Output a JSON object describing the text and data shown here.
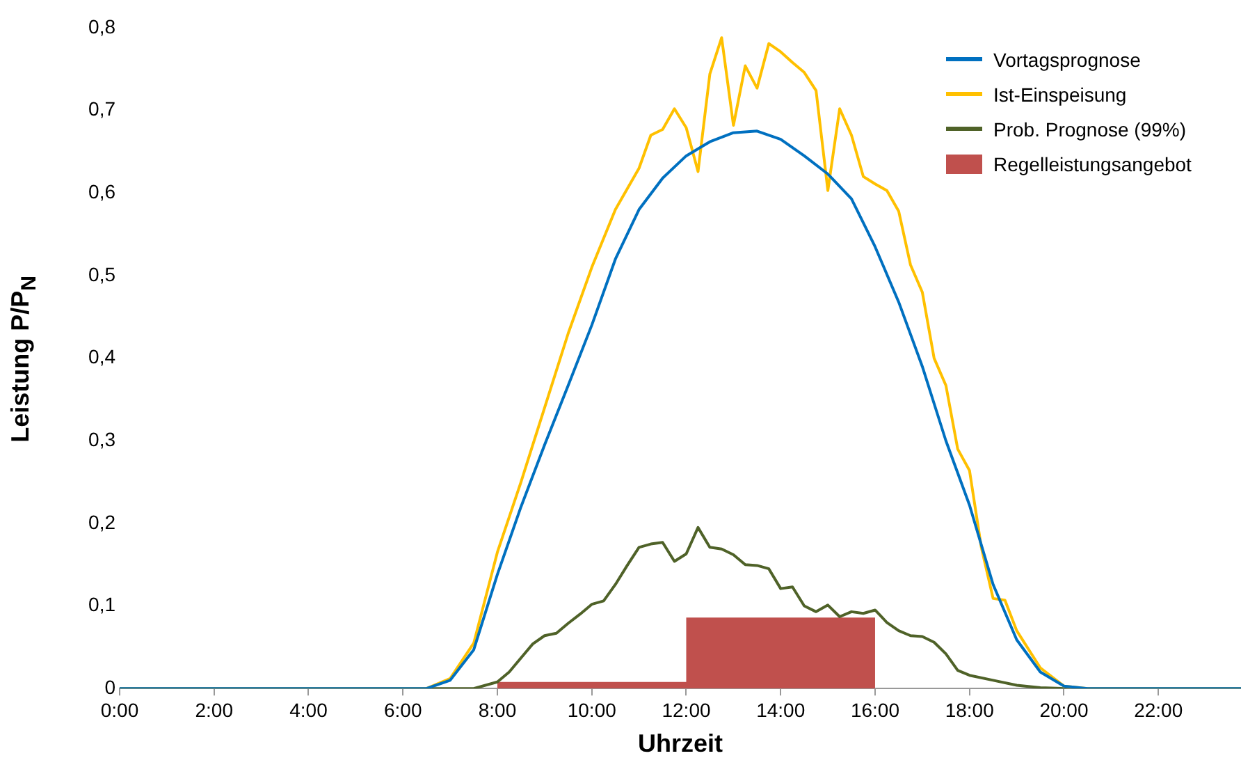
{
  "chart_data": {
    "type": "line",
    "xlabel": "Uhrzeit",
    "ylabel": "Leistung P/P$_{N}$",
    "xlim": [
      0,
      23.75
    ],
    "ylim": [
      0,
      0.8
    ],
    "xticks": [
      {
        "value": 0,
        "label": "0:00"
      },
      {
        "value": 2,
        "label": "2:00"
      },
      {
        "value": 4,
        "label": "4:00"
      },
      {
        "value": 6,
        "label": "6:00"
      },
      {
        "value": 8,
        "label": "8:00"
      },
      {
        "value": 10,
        "label": "10:00"
      },
      {
        "value": 12,
        "label": "12:00"
      },
      {
        "value": 14,
        "label": "14:00"
      },
      {
        "value": 16,
        "label": "16:00"
      },
      {
        "value": 18,
        "label": "18:00"
      },
      {
        "value": 20,
        "label": "20:00"
      },
      {
        "value": 22,
        "label": "22:00"
      }
    ],
    "yticks": [
      0,
      {
        "value": 0.1,
        "label": "0,1"
      },
      {
        "value": 0.2,
        "label": "0,2"
      },
      {
        "value": 0.3,
        "label": "0,3"
      },
      {
        "value": 0.4,
        "label": "0,4"
      },
      {
        "value": 0.5,
        "label": "0,5"
      },
      {
        "value": 0.6,
        "label": "0,6"
      },
      {
        "value": 0.7,
        "label": "0,7"
      },
      {
        "value": 0.8,
        "label": "0,8"
      }
    ],
    "grid": false,
    "legend": "top right",
    "marker": "none",
    "line_style": "solid",
    "series": [
      {
        "name": "Regelleistungsangebot",
        "type": "area",
        "color": "#c0504d",
        "x": [
          8,
          8,
          12,
          12,
          16,
          16
        ],
        "values": [
          0,
          0.008,
          0.008,
          0.086,
          0.086,
          0
        ]
      },
      {
        "name": "Vortagsprognose",
        "type": "line",
        "color": "#0070c0",
        "x": [
          0,
          6.5,
          7,
          7.5,
          8,
          8.5,
          9,
          9.5,
          10,
          10.5,
          11,
          11.5,
          12,
          12.5,
          13,
          13.5,
          14,
          14.5,
          15,
          15.5,
          16,
          16.5,
          17,
          17.5,
          18,
          18.5,
          19,
          19.5,
          20,
          20.5,
          23.75
        ],
        "values": [
          0,
          0,
          0.01,
          0.047,
          0.138,
          0.22,
          0.295,
          0.367,
          0.44,
          0.52,
          0.58,
          0.618,
          0.645,
          0.662,
          0.673,
          0.675,
          0.665,
          0.645,
          0.623,
          0.593,
          0.535,
          0.468,
          0.39,
          0.3,
          0.222,
          0.126,
          0.059,
          0.02,
          0.003,
          0,
          0
        ]
      },
      {
        "name": "Ist-Einspeisung",
        "type": "line",
        "color": "#ffc000",
        "x": [
          0,
          6.5,
          7,
          7.5,
          8,
          8.5,
          9,
          9.5,
          10,
          10.5,
          11,
          11.25,
          11.5,
          11.75,
          12,
          12.25,
          12.5,
          12.75,
          13,
          13.25,
          13.5,
          13.75,
          14,
          14.25,
          14.5,
          14.75,
          15,
          15.25,
          15.5,
          15.75,
          16,
          16.25,
          16.5,
          16.75,
          17,
          17.25,
          17.5,
          17.75,
          18,
          18.25,
          18.5,
          18.75,
          19,
          19.5,
          20,
          20.5,
          23.75
        ],
        "values": [
          0,
          0,
          0.012,
          0.055,
          0.165,
          0.25,
          0.34,
          0.43,
          0.51,
          0.58,
          0.63,
          0.67,
          0.677,
          0.702,
          0.679,
          0.626,
          0.744,
          0.788,
          0.682,
          0.754,
          0.727,
          0.781,
          0.771,
          0.758,
          0.746,
          0.724,
          0.603,
          0.702,
          0.67,
          0.62,
          0.611,
          0.603,
          0.578,
          0.513,
          0.48,
          0.4,
          0.367,
          0.29,
          0.264,
          0.171,
          0.109,
          0.107,
          0.07,
          0.025,
          0.003,
          0,
          0
        ]
      },
      {
        "name": "Prob. Prognose (99%)",
        "type": "line",
        "color": "#4f6228",
        "x": [
          0,
          7.5,
          8,
          8.25,
          8.5,
          8.75,
          9,
          9.25,
          9.5,
          9.75,
          10,
          10.25,
          10.5,
          10.75,
          11,
          11.25,
          11.5,
          11.75,
          12,
          12.25,
          12.5,
          12.75,
          13,
          13.25,
          13.5,
          13.75,
          14,
          14.25,
          14.5,
          14.75,
          15,
          15.25,
          15.5,
          15.75,
          16,
          16.25,
          16.5,
          16.75,
          17,
          17.25,
          17.5,
          17.75,
          18,
          18.5,
          19,
          19.5,
          20,
          23.75
        ],
        "values": [
          0,
          0,
          0.008,
          0.02,
          0.037,
          0.054,
          0.064,
          0.067,
          0.079,
          0.09,
          0.102,
          0.106,
          0.126,
          0.149,
          0.171,
          0.175,
          0.177,
          0.154,
          0.163,
          0.195,
          0.171,
          0.169,
          0.162,
          0.15,
          0.149,
          0.145,
          0.121,
          0.123,
          0.1,
          0.093,
          0.101,
          0.087,
          0.093,
          0.091,
          0.095,
          0.08,
          0.07,
          0.064,
          0.063,
          0.056,
          0.042,
          0.022,
          0.016,
          0.01,
          0.004,
          0.001,
          0,
          0
        ]
      }
    ]
  }
}
